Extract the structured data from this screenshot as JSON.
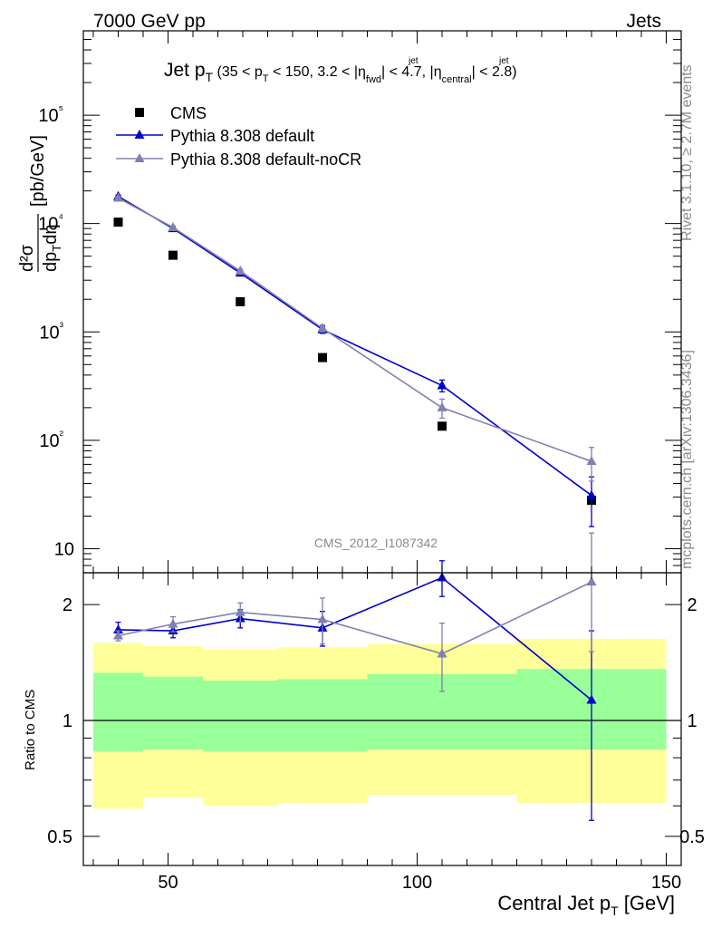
{
  "header": {
    "energy": "7000 GeV pp",
    "process": "Jets",
    "rivet_label": "Rivet 3.1.10, ≥ 2.7M events",
    "source_label": "mcplots.cern.ch [arXiv:1306.3436]",
    "analysis_id": "CMS_2012_I1087342"
  },
  "chart_data": [
    {
      "type": "line",
      "panel": "main",
      "title": "Jet pT (35 < pT < 150, 3.2 < |η jet fwd| < 4.7, |η jet central| < 2.8)",
      "ylabel": "d²σ / dpT dη [pb/GeV]",
      "xlabel": "Central Jet pT [GeV]",
      "xlim": [
        33,
        153
      ],
      "ylim": [
        6,
        600000
      ],
      "yscale": "log",
      "x_ticks": [
        50,
        100,
        150
      ],
      "x_tick_labels": [
        "50",
        "100",
        "150"
      ],
      "y_ticks": [
        10,
        100,
        1000,
        10000,
        100000
      ],
      "y_tick_labels": [
        "10",
        "10²",
        "10³",
        "10⁴",
        "10⁵"
      ],
      "legend": [
        "CMS",
        "Pythia 8.308 default",
        "Pythia 8.308 default-noCR"
      ],
      "legend_position": "top-left",
      "series": [
        {
          "name": "CMS",
          "style": "markers",
          "color": "#000000",
          "x": [
            40,
            51,
            64.5,
            81,
            105,
            135
          ],
          "y": [
            10300,
            5100,
            1900,
            580,
            135,
            28
          ]
        },
        {
          "name": "Pythia 8.308 default",
          "style": "line-triangle",
          "color": "#0000cc",
          "x": [
            40,
            51,
            64.5,
            81,
            105,
            135
          ],
          "y": [
            17800,
            9000,
            3500,
            1050,
            320,
            31
          ],
          "err": [
            500,
            300,
            150,
            80,
            40,
            15
          ]
        },
        {
          "name": "Pythia 8.308 default-noCR",
          "style": "line-triangle",
          "color": "#8080b0",
          "x": [
            40,
            51,
            64.5,
            81,
            105,
            135
          ],
          "y": [
            17200,
            9200,
            3650,
            1080,
            200,
            64
          ],
          "err": [
            500,
            300,
            150,
            80,
            40,
            22
          ]
        }
      ]
    },
    {
      "type": "line",
      "panel": "ratio",
      "ylabel": "Ratio to CMS",
      "xlabel": "Central Jet pT [GeV]",
      "xlim": [
        33,
        153
      ],
      "ylim": [
        0.42,
        2.42
      ],
      "yscale": "log",
      "y_ticks": [
        0.5,
        1,
        2
      ],
      "y_tick_labels": [
        "0.5",
        "1",
        "2"
      ],
      "bands": [
        {
          "xlo": 35,
          "xhi": 45,
          "yellow": [
            0.59,
            1.59
          ],
          "green": [
            0.83,
            1.33
          ]
        },
        {
          "xlo": 45,
          "xhi": 57,
          "yellow": [
            0.63,
            1.56
          ],
          "green": [
            0.84,
            1.3
          ]
        },
        {
          "xlo": 57,
          "xhi": 72,
          "yellow": [
            0.6,
            1.53
          ],
          "green": [
            0.83,
            1.27
          ]
        },
        {
          "xlo": 72,
          "xhi": 90,
          "yellow": [
            0.61,
            1.55
          ],
          "green": [
            0.83,
            1.28
          ]
        },
        {
          "xlo": 90,
          "xhi": 120,
          "yellow": [
            0.64,
            1.58
          ],
          "green": [
            0.84,
            1.32
          ]
        },
        {
          "xlo": 120,
          "xhi": 150,
          "yellow": [
            0.61,
            1.63
          ],
          "green": [
            0.84,
            1.36
          ]
        }
      ],
      "series": [
        {
          "name": "Pythia 8.308 default",
          "color": "#0000cc",
          "x": [
            40,
            51,
            64.5,
            81,
            105,
            135
          ],
          "y": [
            1.72,
            1.71,
            1.84,
            1.74,
            2.35,
            1.13
          ],
          "err": [
            0.08,
            0.07,
            0.1,
            0.18,
            0.25,
            0.58
          ]
        },
        {
          "name": "Pythia 8.308 default-noCR",
          "color": "#8080b0",
          "x": [
            40,
            51,
            64.5,
            81,
            105,
            135
          ],
          "y": [
            1.66,
            1.78,
            1.91,
            1.83,
            1.49,
            2.29
          ],
          "err": [
            0.05,
            0.08,
            0.11,
            0.25,
            0.3,
            0.78
          ]
        }
      ]
    }
  ]
}
